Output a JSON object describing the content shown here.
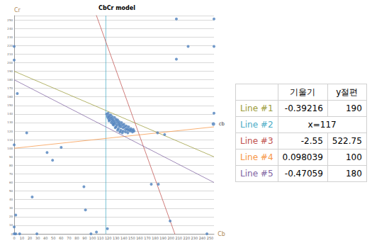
{
  "chart_data": {
    "type": "scatter",
    "title": "CbCr model",
    "x_label": "Cb",
    "y_label": "Cr",
    "xlim": [
      0,
      255
    ],
    "ylim": [
      0,
      255
    ],
    "xticks": [
      0,
      10,
      20,
      30,
      40,
      50,
      60,
      70,
      80,
      90,
      100,
      110,
      120,
      130,
      140,
      150,
      160,
      170,
      180,
      190,
      200,
      210,
      220,
      230,
      240,
      250
    ],
    "yticks": [
      0,
      10,
      20,
      30,
      40,
      50,
      60,
      70,
      80,
      90,
      100,
      110,
      120,
      130,
      140,
      150,
      160,
      170,
      180,
      190,
      200,
      210,
      220,
      230,
      240,
      250
    ],
    "grid": true,
    "legend": "right",
    "series": [
      {
        "name": "cb",
        "color": "#4f81bd",
        "marker": "circle",
        "x": [
          0,
          0,
          4,
          0,
          16,
          42,
          49,
          60,
          23,
          2,
          0,
          0,
          2,
          7,
          29,
          89,
          91,
          98,
          105,
          119,
          175,
          184,
          183,
          192,
          199,
          207,
          207,
          222,
          255,
          255,
          255,
          246,
          118,
          119,
          120,
          120,
          121,
          122,
          122,
          123,
          124,
          125,
          125,
          126,
          127,
          128,
          128,
          129,
          130,
          131,
          131,
          132,
          133,
          134,
          134,
          135,
          136,
          137,
          138,
          139,
          140,
          141,
          142,
          143,
          144,
          145,
          146,
          147,
          148,
          149,
          150,
          151,
          152,
          153,
          124,
          127,
          130,
          133,
          136,
          139,
          142,
          145,
          121,
          126,
          129,
          132,
          135,
          138
        ],
        "y": [
          219,
          203,
          164,
          104,
          118,
          95,
          86,
          101,
          43,
          22,
          8,
          0,
          0,
          0,
          0,
          55,
          28,
          0,
          2,
          6,
          58,
          58,
          118,
          116,
          15,
          251,
          204,
          219,
          251,
          219,
          141,
          0,
          140,
          137,
          141,
          135,
          138,
          136,
          133,
          139,
          135,
          137,
          132,
          134,
          130,
          136,
          132,
          129,
          134,
          131,
          127,
          133,
          129,
          126,
          131,
          128,
          125,
          130,
          127,
          124,
          128,
          125,
          122,
          126,
          123,
          121,
          125,
          122,
          120,
          123,
          121,
          119,
          122,
          120,
          130,
          127,
          125,
          123,
          121,
          120,
          119,
          118,
          132,
          128,
          124,
          121,
          119,
          118
        ]
      }
    ],
    "lines": [
      {
        "name": "Line #1",
        "color": "#9b9b3a",
        "slope": -0.39216,
        "intercept": 190
      },
      {
        "name": "Line #2",
        "color": "#4bacc6",
        "x": 117,
        "label": "x=117"
      },
      {
        "name": "Line #3",
        "color": "#c0504d",
        "slope": -2.55,
        "intercept": 522.75
      },
      {
        "name": "Line #4",
        "color": "#f79646",
        "slope": 0.098039,
        "intercept": 100
      },
      {
        "name": "Line #5",
        "color": "#8064a2",
        "slope": -0.47059,
        "intercept": 180
      }
    ]
  },
  "table": {
    "columns": [
      "기울기",
      "y절편"
    ]
  }
}
